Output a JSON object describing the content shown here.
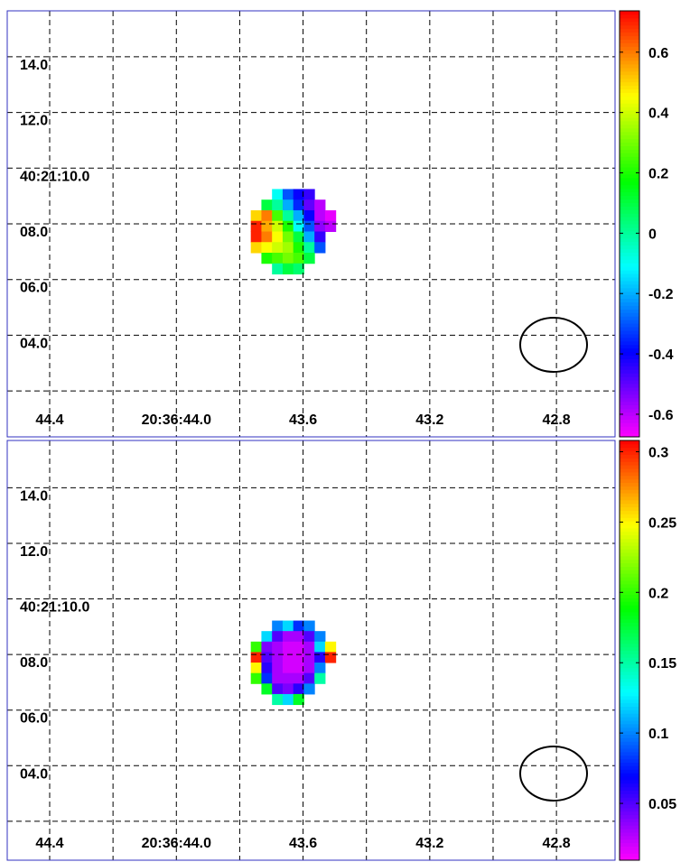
{
  "chart_data": [
    {
      "type": "image",
      "xlim": [
        44.534,
        42.615
      ],
      "ylim": [
        0.35,
        15.65
      ],
      "xticks": [
        44.4,
        {
          "value": 44.0,
          "label": "20:36:44.0"
        },
        43.6,
        43.2,
        42.8
      ],
      "xminor": [
        44.2,
        43.8,
        43.4,
        43.0
      ],
      "yticks": [
        {
          "value": 14,
          "label": "14.0"
        },
        {
          "value": 12,
          "label": "12.0"
        },
        {
          "value": 10,
          "label": "40:21:10.0"
        },
        {
          "value": 8,
          "label": "08.0"
        },
        {
          "value": 6,
          "label": "06.0"
        },
        {
          "value": 4,
          "label": "04.0"
        }
      ],
      "yminor": [
        2
      ],
      "colormap": [
        "#ff00ff",
        "#0000ff",
        "#00ffff",
        "#00ff00",
        "#ffff00",
        "#ff0000"
      ],
      "clim": [
        -0.675,
        0.737
      ],
      "cticks": [
        0.6,
        0.4,
        0.2,
        0,
        -0.2,
        -0.4,
        -0.6
      ],
      "image": {
        "extent": [
          43.765,
          43.497,
          9.25,
          6.2
        ],
        "values": [
          [
            null,
            null,
            -0.1,
            -0.3,
            -0.4,
            -0.45,
            null,
            null
          ],
          [
            null,
            0.1,
            0.0,
            -0.2,
            -0.35,
            -0.5,
            -0.6,
            null
          ],
          [
            0.5,
            0.6,
            0.25,
            0.0,
            -0.2,
            -0.4,
            -0.6,
            -0.65
          ],
          [
            0.7,
            0.55,
            0.4,
            0.2,
            -0.1,
            -0.3,
            -0.55,
            -0.6
          ],
          [
            0.7,
            0.6,
            0.45,
            0.3,
            0.1,
            -0.2,
            -0.45,
            null
          ],
          [
            0.5,
            0.45,
            0.4,
            0.35,
            0.2,
            0.0,
            -0.3,
            null
          ],
          [
            null,
            0.2,
            0.25,
            0.3,
            0.25,
            0.1,
            null,
            null
          ],
          [
            null,
            null,
            0.0,
            0.1,
            0.05,
            null,
            null,
            null
          ]
        ]
      }
    },
    {
      "type": "image",
      "xlim": [
        44.534,
        42.615
      ],
      "ylim": [
        0.6,
        15.7
      ],
      "xticks": [
        44.4,
        {
          "value": 44.0,
          "label": "20:36:44.0"
        },
        43.6,
        43.2,
        42.8
      ],
      "xminor": [
        44.2,
        43.8,
        43.4,
        43.0
      ],
      "yticks": [
        {
          "value": 14,
          "label": "14.0"
        },
        {
          "value": 12,
          "label": "12.0"
        },
        {
          "value": 10,
          "label": "40:21:10.0"
        },
        {
          "value": 8,
          "label": "08.0"
        },
        {
          "value": 6,
          "label": "06.0"
        },
        {
          "value": 4,
          "label": "04.0"
        }
      ],
      "yminor": [
        2
      ],
      "colormap": [
        "#ff00ff",
        "#0000ff",
        "#00ffff",
        "#00ff00",
        "#ffff00",
        "#ff0000"
      ],
      "clim": [
        0.0096,
        0.308
      ],
      "cticks": [
        0.3,
        0.25,
        0.2,
        0.15,
        0.1,
        0.05
      ],
      "image": {
        "extent": [
          43.765,
          43.497,
          9.22,
          6.2
        ],
        "values": [
          [
            null,
            null,
            0.1,
            0.12,
            0.08,
            0.1,
            null,
            null
          ],
          [
            null,
            0.12,
            0.05,
            0.03,
            0.03,
            0.05,
            0.1,
            null
          ],
          [
            0.2,
            0.04,
            0.03,
            0.02,
            0.02,
            0.03,
            0.12,
            0.25
          ],
          [
            0.3,
            0.05,
            0.03,
            0.02,
            0.02,
            0.03,
            0.06,
            0.3
          ],
          [
            0.25,
            0.06,
            0.03,
            0.02,
            0.02,
            0.03,
            0.1,
            null
          ],
          [
            0.2,
            0.08,
            0.03,
            0.03,
            0.03,
            0.05,
            0.15,
            null
          ],
          [
            null,
            0.18,
            0.05,
            0.04,
            0.06,
            0.1,
            null,
            null
          ],
          [
            null,
            null,
            0.15,
            0.12,
            0.18,
            null,
            null,
            null
          ]
        ]
      }
    }
  ]
}
